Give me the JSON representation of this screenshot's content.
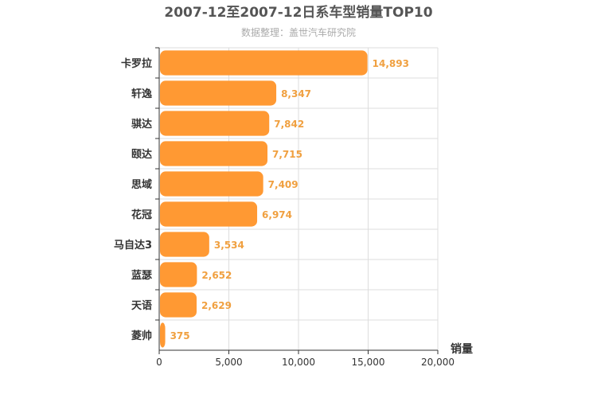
{
  "chart_data": {
    "type": "bar",
    "orientation": "horizontal",
    "title": "2007-12至2007-12日系车型销量TOP10",
    "subtitle": "数据整理：盖世汽车研究院",
    "categories": [
      "卡罗拉",
      "轩逸",
      "骐达",
      "颐达",
      "思域",
      "花冠",
      "马自达3",
      "蓝瑟",
      "天语",
      "菱帅"
    ],
    "values": [
      14893,
      8347,
      7842,
      7715,
      7409,
      6974,
      3534,
      2652,
      2629,
      375
    ],
    "value_labels": [
      "14,893",
      "8,347",
      "7,842",
      "7,715",
      "7,409",
      "6,974",
      "3,534",
      "2,652",
      "2,629",
      "375"
    ],
    "xlabel": "销量",
    "ylabel": "",
    "xlim": [
      0,
      20000
    ],
    "ticks": [
      0,
      5000,
      10000,
      15000,
      20000
    ],
    "tick_labels": [
      "0",
      "5,000",
      "10,000",
      "15,000",
      "20,000"
    ],
    "grid": true,
    "colors": {
      "bar": "#ff9933",
      "label": "#f0a040",
      "grid": "#dddddd",
      "axis": "#333333"
    }
  }
}
